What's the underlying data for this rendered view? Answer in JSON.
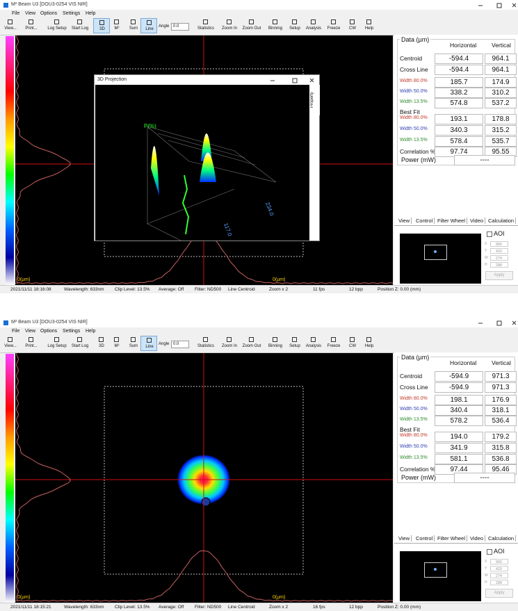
{
  "windows": [
    {
      "title": "M² Beam U3 [DOU3-0254 VIS NIR]",
      "menu": [
        "File",
        "View",
        "Options",
        "Settings",
        "Help"
      ],
      "toolbar": [
        {
          "label": "View..."
        },
        {
          "label": "Print..."
        },
        {
          "label": "Log Setup"
        },
        {
          "label": "Start Log"
        },
        {
          "label": "3D",
          "pressed": true
        },
        {
          "label": "M²"
        },
        {
          "label": "Sum"
        },
        {
          "label": "Line",
          "pressed": true
        },
        {
          "label": "Statistics"
        },
        {
          "label": "Zoom In"
        },
        {
          "label": "Zoom Out"
        },
        {
          "label": "Binning"
        },
        {
          "label": "Setup"
        },
        {
          "label": "Analysis"
        },
        {
          "label": "Freeze"
        },
        {
          "label": "CW"
        },
        {
          "label": "Help"
        }
      ],
      "angle": {
        "label": "Angle",
        "value": "0.0"
      },
      "image_labels": [
        "0(µm)",
        "0(µm)"
      ],
      "dialog": {
        "title": "3D Projection",
        "side": "Property",
        "axis_labels": [
          "P(%)",
          "234.0",
          "117.0"
        ]
      },
      "panel": {
        "group_title": "Data (µm)",
        "columns": [
          "Horizontal",
          "Vertical"
        ],
        "rows": [
          {
            "label": "Centroid",
            "h": "-594.4",
            "v": "964.1"
          },
          {
            "label": "Cross Line",
            "h": "-594.4",
            "v": "964.1"
          },
          {
            "label": "Width 80.0%",
            "h": "185.7",
            "v": "174.9",
            "color": "#c0392b"
          },
          {
            "label": "Width 50.0%",
            "h": "338.2",
            "v": "310.2",
            "color": "#2e3fb0"
          },
          {
            "label": "Width 13.5%",
            "h": "574.8",
            "v": "537.2",
            "color": "#2e8b2e"
          },
          {
            "label": "Best Fit"
          },
          {
            "label": "Width 80.0%",
            "h": "193.1",
            "v": "178.8",
            "color": "#c0392b"
          },
          {
            "label": "Width 50.0%",
            "h": "340.3",
            "v": "315.2",
            "color": "#2e3fb0"
          },
          {
            "label": "Width 13.5%",
            "h": "578.4",
            "v": "535.7",
            "color": "#2e8b2e"
          },
          {
            "label": "Correlation %",
            "h": "97.74",
            "v": "95.55"
          }
        ],
        "power": {
          "label": "Power (mW)",
          "value": "----"
        }
      },
      "tabs": [
        "View",
        "Control",
        "Filter Wheel",
        "Video",
        "Calculation"
      ],
      "aoi": {
        "label": "AOI",
        "fields": [
          {
            "name": "X",
            "value": "960"
          },
          {
            "name": "Y",
            "value": "420"
          },
          {
            "name": "W",
            "value": "274"
          },
          {
            "name": "H",
            "value": "288"
          }
        ],
        "apply": "Apply"
      },
      "status": [
        "2021/11/11 18:16:08",
        "Wavelength: 633nm",
        "Clip Level: 13.5%",
        "Average: Off",
        "Filter: ND500",
        "Line Centroid",
        "Zoom x 2",
        "11 fps",
        "12 bpp",
        "Position Z: 0.00 (mm)"
      ]
    },
    {
      "title": "M² Beam U3 [DOU3-0254 VIS NIR]",
      "menu": [
        "File",
        "View",
        "Options",
        "Settings",
        "Help"
      ],
      "toolbar": [
        {
          "label": "View..."
        },
        {
          "label": "Print..."
        },
        {
          "label": "Log Setup"
        },
        {
          "label": "Start Log"
        },
        {
          "label": "3D"
        },
        {
          "label": "M²"
        },
        {
          "label": "Sum"
        },
        {
          "label": "Line",
          "pressed": true
        },
        {
          "label": "Statistics"
        },
        {
          "label": "Zoom In"
        },
        {
          "label": "Zoom Out"
        },
        {
          "label": "Binning"
        },
        {
          "label": "Setup"
        },
        {
          "label": "Analysis"
        },
        {
          "label": "Freeze"
        },
        {
          "label": "CW"
        },
        {
          "label": "Help"
        }
      ],
      "angle": {
        "label": "Angle",
        "value": "0.0"
      },
      "image_labels": [
        "0(µm)",
        "0(µm)"
      ],
      "panel": {
        "group_title": "Data (µm)",
        "columns": [
          "Horizontal",
          "Vertical"
        ],
        "rows": [
          {
            "label": "Centroid",
            "h": "-594.9",
            "v": "971.3"
          },
          {
            "label": "Cross Line",
            "h": "-594.9",
            "v": "971.3"
          },
          {
            "label": "Width 80.0%",
            "h": "198.1",
            "v": "176.9",
            "color": "#c0392b"
          },
          {
            "label": "Width 50.0%",
            "h": "340.4",
            "v": "318.1",
            "color": "#2e3fb0"
          },
          {
            "label": "Width 13.5%",
            "h": "578.2",
            "v": "536.4",
            "color": "#2e8b2e"
          },
          {
            "label": "Best Fit"
          },
          {
            "label": "Width 80.0%",
            "h": "194.0",
            "v": "179.2",
            "color": "#c0392b"
          },
          {
            "label": "Width 50.0%",
            "h": "341.9",
            "v": "315.8",
            "color": "#2e3fb0"
          },
          {
            "label": "Width 13.5%",
            "h": "581.1",
            "v": "536.8",
            "color": "#2e8b2e"
          },
          {
            "label": "Correlation %",
            "h": "97.44",
            "v": "95.46"
          }
        ],
        "power": {
          "label": "Power (mW)",
          "value": "----"
        }
      },
      "tabs": [
        "View",
        "Control",
        "Filter Wheel",
        "Video",
        "Calculation"
      ],
      "aoi": {
        "label": "AOI",
        "fields": [
          {
            "name": "X",
            "value": "960"
          },
          {
            "name": "Y",
            "value": "420"
          },
          {
            "name": "W",
            "value": "274"
          },
          {
            "name": "H",
            "value": "288"
          }
        ],
        "apply": "Apply"
      },
      "status": [
        "2021/11/11 18:15:21",
        "Wavelength: 633nm",
        "Clip Level: 13.5%",
        "Average: Off",
        "Filter: ND500",
        "Line Centroid",
        "Zoom x 2",
        "16 fps",
        "12 bpp",
        "Position Z: 0.00 (mm)"
      ]
    }
  ]
}
